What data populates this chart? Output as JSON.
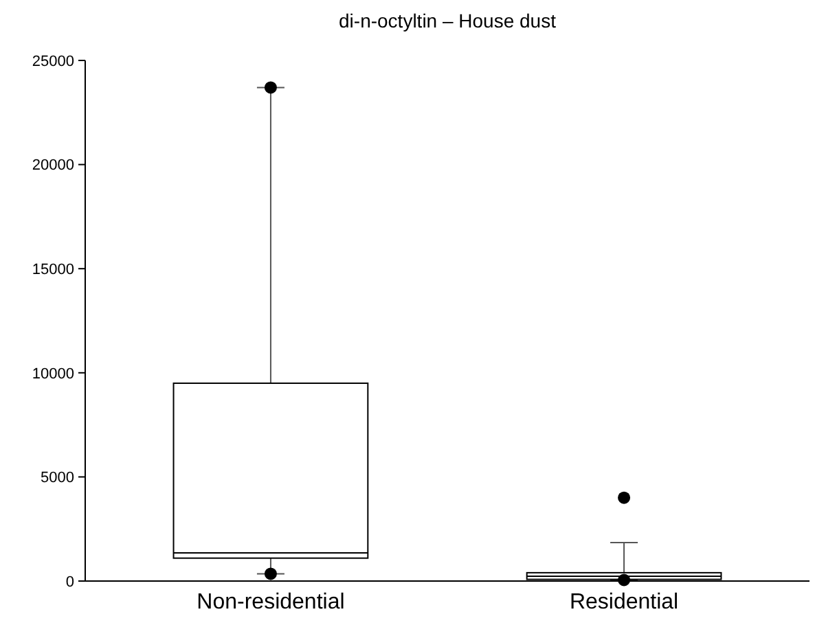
{
  "chart_data": {
    "type": "box",
    "title": "di-n-octyltin – House dust",
    "categories": [
      "Non-residential",
      "Residential"
    ],
    "boxes": [
      {
        "low": 350,
        "q1": 1100,
        "median": 1350,
        "q3": 9500,
        "high": 23700,
        "outliers": [
          23700,
          350
        ]
      },
      {
        "low": 50,
        "q1": 80,
        "median": 230,
        "q3": 400,
        "high": 1850,
        "outliers": [
          4000,
          50
        ]
      }
    ],
    "ylim": [
      0,
      25000
    ],
    "yticks": [
      0,
      5000,
      10000,
      15000,
      20000,
      25000
    ],
    "grid": false
  }
}
